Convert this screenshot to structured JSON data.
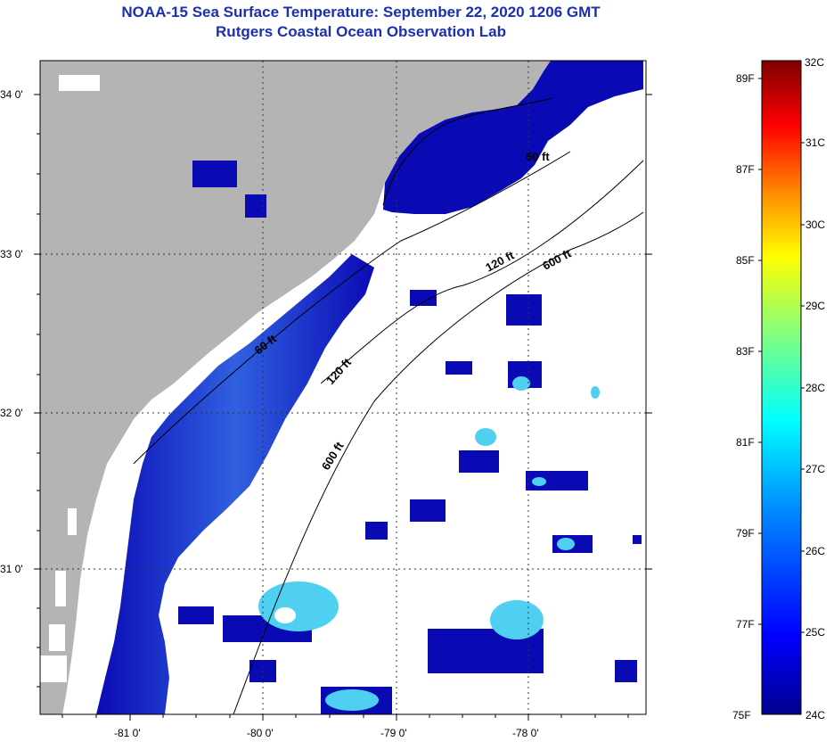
{
  "title": {
    "line1": "NOAA-15 Sea Surface Temperature:  September 22, 2020 1206 GMT",
    "line2": "Rutgers Coastal Ocean Observation Lab"
  },
  "map": {
    "lat_labels": [
      "34 0'",
      "33 0'",
      "32 0'",
      "31 0'"
    ],
    "lon_labels": [
      "-81 0'",
      "-80 0'",
      "-79 0'",
      "-78 0'"
    ],
    "isobaths": [
      "60 ft",
      "120 ft",
      "600 ft"
    ],
    "contour_labels": [
      "60 ft",
      "60 ft",
      "120 ft",
      "120 ft",
      "600 ft",
      "600 ft"
    ]
  },
  "colorbar": {
    "celsius": [
      "32C",
      "31C",
      "30C",
      "29C",
      "28C",
      "27C",
      "26C",
      "25C",
      "24C"
    ],
    "fahrenheit": [
      "89F",
      "87F",
      "85F",
      "83F",
      "81F",
      "79F",
      "77F",
      "75F"
    ],
    "colors": [
      "#7f0000",
      "#ff0000",
      "#ff8800",
      "#ffff00",
      "#80ff80",
      "#00ffff",
      "#0080ff",
      "#0000ff",
      "#00008f"
    ]
  },
  "legend_colors": {
    "land": "#b4b4b4",
    "deep_blue": "#0a0ab4",
    "mid_blue": "#2a4ae0",
    "cyan": "#50d0f0"
  }
}
